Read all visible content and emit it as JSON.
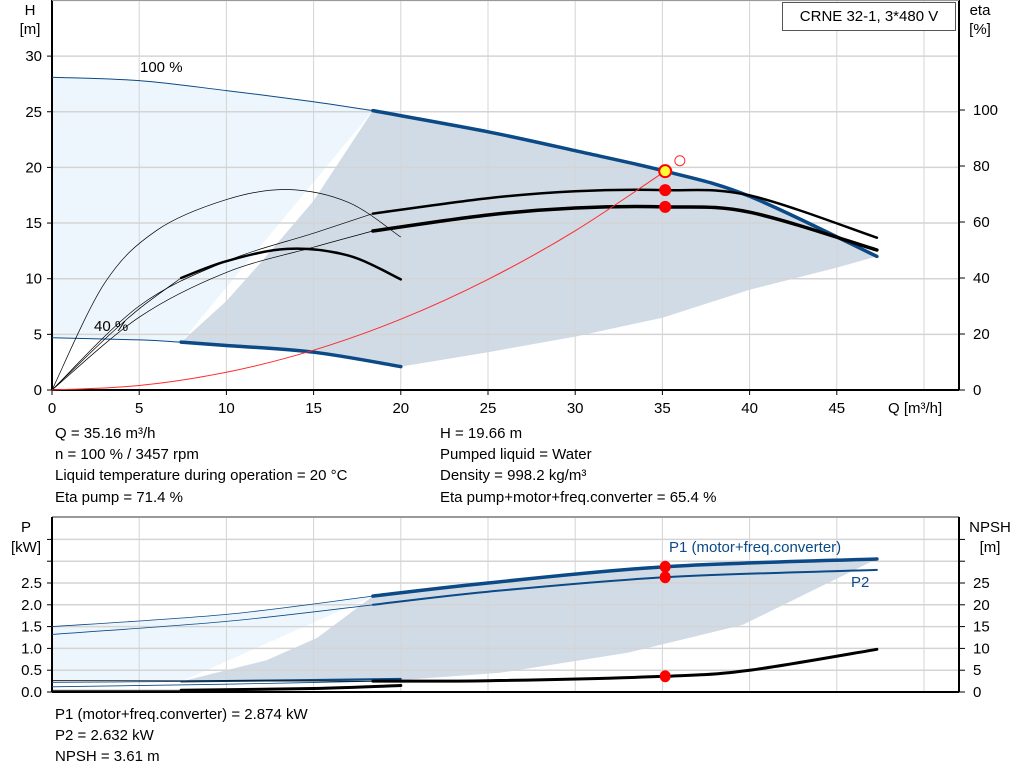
{
  "title": "CRNE 32-1, 3*480 V",
  "colors": {
    "blue": "#0b4a86",
    "light_region": "#eef6fd",
    "dark_region": "#d0dbe6",
    "system_curve": "#ff2a2a",
    "marker": "#ff0000",
    "duty_point_fill": "#ffff33",
    "grid": "#d4d4d4"
  },
  "info_top": {
    "left": [
      "Q = 35.16 m³/h",
      "n = 100 % / 3457 rpm",
      "Liquid temperature during operation = 20 °C",
      "Eta pump = 71.4 %"
    ],
    "right": [
      "H = 19.66 m",
      "Pumped liquid = Water",
      "Density = 998.2 kg/m³",
      "Eta pump+motor+freq.converter = 65.4 %"
    ]
  },
  "info_bottom": [
    "P1 (motor+freq.converter) = 2.874 kW",
    "P2 = 2.632 kW",
    "NPSH = 3.61 m"
  ],
  "chart_data": [
    {
      "type": "line",
      "xlabel": "Q [m³/h]",
      "ylabel": [
        "H",
        "[m]"
      ],
      "y2label": [
        "eta",
        "[%]"
      ],
      "xlim": [
        0,
        50
      ],
      "ylim": [
        0,
        35
      ],
      "y2lim": [
        0,
        125
      ],
      "xticks": [
        0,
        5,
        10,
        15,
        20,
        25,
        30,
        35,
        40,
        45
      ],
      "yticks": [
        0,
        5,
        10,
        15,
        20,
        25,
        30
      ],
      "y2ticks": [
        0,
        20,
        40,
        60,
        80,
        100
      ],
      "grid": true,
      "annotations": [
        "100 %",
        "40 %"
      ],
      "series": [
        {
          "axis": "H",
          "color": "#0b4a86",
          "points": [
            [
              0,
              28.1
            ],
            [
              5,
              27.8
            ],
            [
              10,
              26.9
            ],
            [
              15,
              25.9
            ],
            [
              18.4,
              25.1
            ],
            [
              25,
              23.2
            ],
            [
              30,
              21.5
            ],
            [
              35.16,
              19.66
            ],
            [
              40,
              17.4
            ],
            [
              47.3,
              12.0
            ]
          ],
          "thick_from": 18.4
        },
        {
          "axis": "H",
          "color": "#0b4a86",
          "points": [
            [
              0,
              4.7
            ],
            [
              5,
              4.5
            ],
            [
              7.4,
              4.3
            ],
            [
              10,
              4.0
            ],
            [
              15,
              3.4
            ],
            [
              20,
              2.1
            ]
          ],
          "thick_from": 7.4
        },
        {
          "axis": "eta",
          "color": "#000000",
          "points": [
            [
              0,
              0
            ],
            [
              5,
              30
            ],
            [
              10,
              46
            ],
            [
              15,
              56
            ],
            [
              18.4,
              63
            ],
            [
              25,
              68.5
            ],
            [
              30,
              71
            ],
            [
              35.16,
              71.4
            ],
            [
              40,
              69.5
            ],
            [
              47.3,
              54.4
            ]
          ],
          "thick_from": 18.4
        },
        {
          "axis": "eta",
          "color": "#000000",
          "points": [
            [
              0,
              0
            ],
            [
              5,
              26
            ],
            [
              10,
              42
            ],
            [
              15,
              51
            ],
            [
              18.4,
              56.8
            ],
            [
              25,
              62.5
            ],
            [
              30,
              65
            ],
            [
              35.16,
              65.4
            ],
            [
              40,
              63.5
            ],
            [
              47.3,
              50
            ]
          ],
          "thick_from": 18.4
        },
        {
          "axis": "eta",
          "color": "#000000",
          "points": [
            [
              0,
              0
            ],
            [
              3,
              38
            ],
            [
              6,
              57
            ],
            [
              10,
              68
            ],
            [
              13.5,
              71.6
            ],
            [
              17,
              67
            ],
            [
              20,
              54.6
            ]
          ],
          "thick_from": 99
        },
        {
          "axis": "eta",
          "color": "#000000",
          "points": [
            [
              0,
              0
            ],
            [
              3,
              18
            ],
            [
              5,
              29
            ],
            [
              7.4,
              40
            ],
            [
              10,
              46
            ],
            [
              13.5,
              50.4
            ],
            [
              17,
              48
            ],
            [
              20,
              39.5
            ]
          ],
          "thick_from": 7.4
        },
        {
          "axis": "H",
          "color": "#ff2a2a",
          "kind": "system",
          "points": [
            [
              0,
              0
            ],
            [
              5,
              0.4
            ],
            [
              10,
              1.59
            ],
            [
              15,
              3.58
            ],
            [
              20,
              6.36
            ],
            [
              25,
              9.94
            ],
            [
              30,
              14.3
            ],
            [
              35.16,
              19.66
            ]
          ]
        }
      ],
      "regions": [
        {
          "kind": "light",
          "points": [
            [
              0,
              28.1
            ],
            [
              5,
              27.8
            ],
            [
              10,
              26.9
            ],
            [
              15,
              25.9
            ],
            [
              18.4,
              25.1
            ],
            [
              7.4,
              4.3
            ],
            [
              5,
              4.5
            ],
            [
              0,
              4.7
            ]
          ]
        },
        {
          "kind": "dark",
          "points": [
            [
              18.4,
              25.1
            ],
            [
              25,
              23.2
            ],
            [
              30,
              21.5
            ],
            [
              35.16,
              19.66
            ],
            [
              40,
              17.4
            ],
            [
              47.3,
              12.0
            ],
            [
              45,
              11
            ],
            [
              40,
              9
            ],
            [
              35,
              6.5
            ],
            [
              30,
              4.8
            ],
            [
              25,
              3.4
            ],
            [
              20,
              2.1
            ],
            [
              15,
              3.4
            ],
            [
              10,
              4.0
            ],
            [
              7.4,
              4.3
            ],
            [
              10,
              8
            ],
            [
              12,
              11.5
            ],
            [
              15,
              17
            ],
            [
              18.4,
              25.1
            ]
          ]
        }
      ],
      "markers": [
        {
          "label": "duty point",
          "x": 35.16,
          "y": 19.66,
          "axis": "H"
        },
        {
          "x": 35.16,
          "y": 71.4,
          "axis": "eta"
        },
        {
          "x": 35.16,
          "y": 65.4,
          "axis": "eta"
        }
      ],
      "open_marker": {
        "x": 36.0,
        "y": 20.6
      }
    },
    {
      "type": "line",
      "ylabel": [
        "P",
        "[kW]"
      ],
      "y2label": [
        "NPSH",
        "[m]"
      ],
      "xlim": [
        0,
        50
      ],
      "ylim": [
        0,
        3.6
      ],
      "y2lim": [
        0,
        36
      ],
      "yticks": [
        "0.0",
        "0.5",
        "1.0",
        "1.5",
        "2.0",
        "2.5"
      ],
      "y2ticks": [
        0,
        5,
        10,
        15,
        20,
        25
      ],
      "grid": true,
      "series": [
        {
          "name": "P1 (motor+freq.converter)",
          "color": "#0b4a86",
          "points": [
            [
              0,
              1.5
            ],
            [
              10,
              1.78
            ],
            [
              18.4,
              2.2
            ],
            [
              25,
              2.5
            ],
            [
              35.16,
              2.874
            ],
            [
              47.3,
              3.05
            ]
          ],
          "thick_from": 18.4
        },
        {
          "name": "P2",
          "color": "#0b4a86",
          "points": [
            [
              0,
              1.32
            ],
            [
              10,
              1.62
            ],
            [
              18.4,
              2.0
            ],
            [
              25,
              2.3
            ],
            [
              35.16,
              2.632
            ],
            [
              47.3,
              2.8
            ]
          ],
          "thick_from": 18.4,
          "thin_width": true
        },
        {
          "color": "#0b4a86",
          "points": [
            [
              0,
              0.22
            ],
            [
              7.4,
              0.24
            ],
            [
              20,
              0.3
            ]
          ],
          "thick_from": 7.4
        },
        {
          "color": "#0b4a86",
          "points": [
            [
              0,
              0.12
            ],
            [
              10,
              0.18
            ],
            [
              20,
              0.26
            ]
          ],
          "thick_from": 99
        },
        {
          "color": "#000000",
          "npsh": true,
          "points": [
            [
              0,
              2.6
            ],
            [
              18.4,
              2.5
            ],
            [
              25,
              2.6
            ],
            [
              35.16,
              3.61
            ],
            [
              40,
              5
            ],
            [
              47.3,
              9.8
            ]
          ],
          "thick_from": 18.4
        },
        {
          "color": "#000000",
          "npsh": true,
          "points": [
            [
              0,
              0.4
            ],
            [
              7.4,
              0.4
            ],
            [
              15,
              0.8
            ],
            [
              20,
              1.5
            ]
          ],
          "thick_from": 7.4
        }
      ],
      "regions": [
        {
          "kind": "light",
          "points": [
            [
              0,
              1.5
            ],
            [
              10,
              1.78
            ],
            [
              18.4,
              2.2
            ],
            [
              7.4,
              0.24
            ],
            [
              0,
              0.22
            ]
          ]
        },
        {
          "kind": "dark",
          "points": [
            [
              18.4,
              2.2
            ],
            [
              25,
              2.5
            ],
            [
              35.16,
              2.874
            ],
            [
              47.3,
              3.05
            ],
            [
              45,
              2.6
            ],
            [
              39.6,
              1.54
            ],
            [
              33,
              0.9
            ],
            [
              25.7,
              0.44
            ],
            [
              20.3,
              0.28
            ],
            [
              7.4,
              0.24
            ],
            [
              12.3,
              0.73
            ],
            [
              15.2,
              1.24
            ],
            [
              18.4,
              2.2
            ]
          ]
        }
      ],
      "markers": [
        {
          "x": 35.16,
          "y": 2.874
        },
        {
          "x": 35.16,
          "y": 2.632
        },
        {
          "x": 35.16,
          "y": 0.361
        }
      ]
    }
  ]
}
